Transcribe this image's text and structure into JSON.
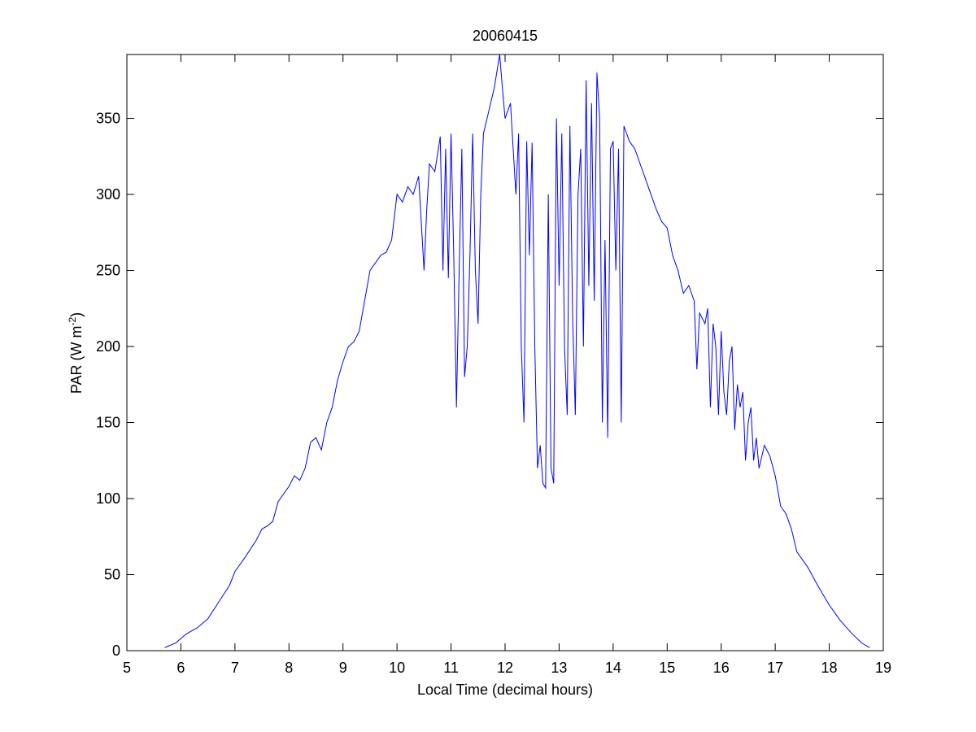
{
  "chart_data": {
    "type": "line",
    "title": "20060415",
    "xlabel": "Local Time (decimal hours)",
    "ylabel_parts": [
      "PAR (W m",
      "-2",
      ")"
    ],
    "xlim": [
      5,
      19
    ],
    "ylim": [
      0,
      392
    ],
    "xticks": [
      5,
      6,
      7,
      8,
      9,
      10,
      11,
      12,
      13,
      14,
      15,
      16,
      17,
      18,
      19
    ],
    "yticks": [
      0,
      50,
      100,
      150,
      200,
      250,
      300,
      350
    ],
    "grid": false,
    "series": [
      {
        "color": "#0000ff",
        "x": [
          5.7,
          5.9,
          6.1,
          6.3,
          6.5,
          6.7,
          6.9,
          7.0,
          7.2,
          7.4,
          7.5,
          7.6,
          7.7,
          7.8,
          8.0,
          8.1,
          8.2,
          8.3,
          8.4,
          8.5,
          8.6,
          8.7,
          8.8,
          8.9,
          9.0,
          9.1,
          9.2,
          9.3,
          9.4,
          9.5,
          9.6,
          9.7,
          9.8,
          9.9,
          10.0,
          10.1,
          10.2,
          10.3,
          10.4,
          10.5,
          10.55,
          10.6,
          10.7,
          10.8,
          10.85,
          10.9,
          10.95,
          11.0,
          11.05,
          11.1,
          11.15,
          11.2,
          11.25,
          11.3,
          11.35,
          11.4,
          11.45,
          11.5,
          11.55,
          11.6,
          11.7,
          11.8,
          11.9,
          11.95,
          12.0,
          12.1,
          12.2,
          12.25,
          12.3,
          12.35,
          12.4,
          12.45,
          12.5,
          12.55,
          12.6,
          12.65,
          12.7,
          12.75,
          12.8,
          12.85,
          12.9,
          12.95,
          13.0,
          13.05,
          13.1,
          13.15,
          13.2,
          13.25,
          13.3,
          13.35,
          13.4,
          13.45,
          13.5,
          13.55,
          13.6,
          13.65,
          13.7,
          13.75,
          13.8,
          13.85,
          13.9,
          13.95,
          14.0,
          14.05,
          14.1,
          14.15,
          14.2,
          14.25,
          14.3,
          14.4,
          14.5,
          14.6,
          14.7,
          14.8,
          14.9,
          15.0,
          15.1,
          15.2,
          15.3,
          15.4,
          15.5,
          15.55,
          15.6,
          15.7,
          15.75,
          15.8,
          15.85,
          15.9,
          15.95,
          16.0,
          16.05,
          16.1,
          16.15,
          16.2,
          16.25,
          16.3,
          16.35,
          16.4,
          16.45,
          16.5,
          16.55,
          16.6,
          16.65,
          16.7,
          16.8,
          16.9,
          17.0,
          17.1,
          17.2,
          17.3,
          17.4,
          17.6,
          17.8,
          18.0,
          18.2,
          18.4,
          18.6,
          18.75
        ],
        "values": [
          2,
          5,
          11,
          15,
          21,
          32,
          43,
          52,
          62,
          73,
          80,
          82,
          85,
          98,
          108,
          115,
          112,
          120,
          137,
          140,
          132,
          150,
          160,
          178,
          190,
          200,
          203,
          210,
          230,
          250,
          255,
          260,
          262,
          270,
          300,
          295,
          305,
          300,
          312,
          250,
          290,
          320,
          315,
          338,
          250,
          330,
          245,
          340,
          260,
          160,
          250,
          330,
          180,
          200,
          260,
          340,
          250,
          215,
          300,
          340,
          355,
          370,
          392,
          370,
          350,
          360,
          300,
          340,
          200,
          150,
          335,
          260,
          334,
          200,
          120,
          135,
          110,
          107,
          300,
          120,
          110,
          350,
          240,
          340,
          200,
          155,
          345,
          220,
          155,
          300,
          330,
          200,
          375,
          240,
          360,
          230,
          380,
          350,
          150,
          270,
          140,
          330,
          335,
          250,
          330,
          150,
          345,
          340,
          335,
          330,
          320,
          310,
          300,
          290,
          282,
          278,
          260,
          250,
          235,
          240,
          230,
          185,
          222,
          215,
          225,
          160,
          215,
          200,
          155,
          210,
          170,
          155,
          190,
          200,
          145,
          175,
          160,
          170,
          125,
          150,
          160,
          125,
          140,
          120,
          135,
          128,
          115,
          95,
          90,
          80,
          65,
          55,
          42,
          30,
          20,
          12,
          5,
          2
        ]
      }
    ]
  }
}
